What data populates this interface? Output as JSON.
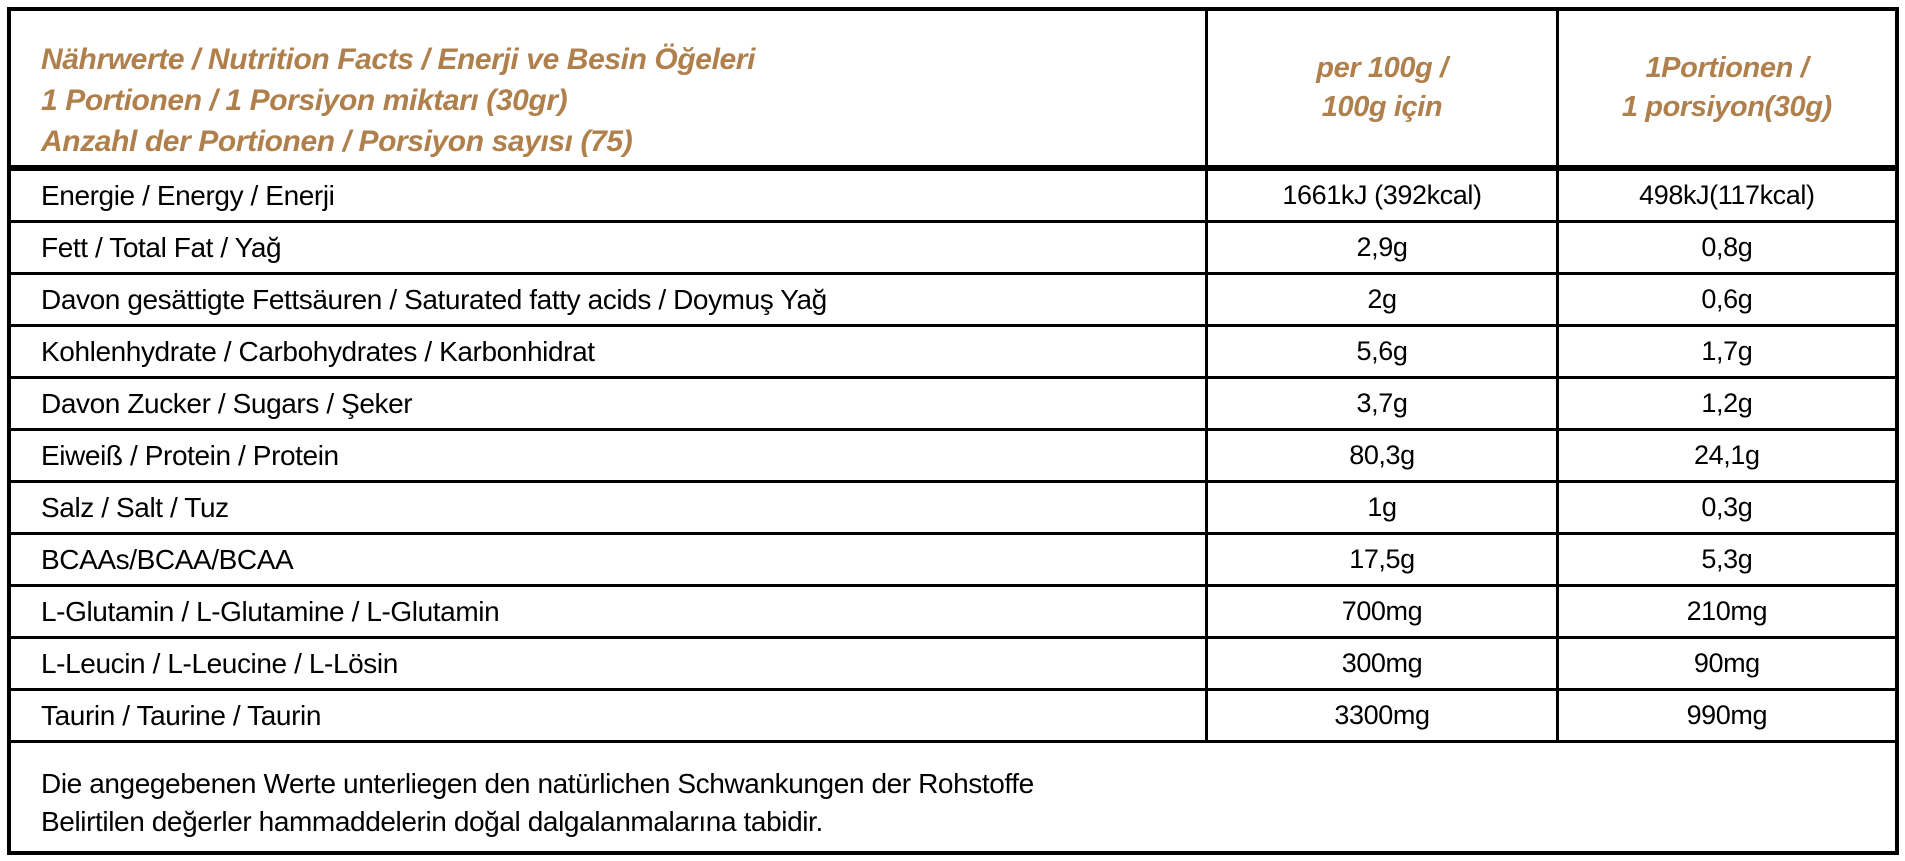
{
  "accent_color": "#b0804c",
  "table": {
    "header": {
      "title_lines": [
        "Nährwerte / Nutrition Facts / Enerji ve Besin Öğeleri",
        "1 Portionen / 1 Porsiyon miktarı (30gr)",
        "Anzahl der Portionen / Porsiyon sayısı (75)"
      ],
      "col_per_100g_lines": [
        "per 100g /",
        "100g için"
      ],
      "col_portion_lines": [
        "1Portionen /",
        "1 porsiyon(30g)"
      ]
    },
    "rows": [
      {
        "label": "Energie / Energy / Enerji",
        "per100g": "1661kJ (392kcal)",
        "portion": "498kJ(117kcal)"
      },
      {
        "label": "Fett / Total Fat / Yağ",
        "per100g": "2,9g",
        "portion": "0,8g"
      },
      {
        "label": "Davon gesättigte Fettsäuren / Saturated fatty acids / Doymuş Yağ",
        "per100g": "2g",
        "portion": "0,6g"
      },
      {
        "label": "Kohlenhydrate / Carbohydrates / Karbonhidrat",
        "per100g": "5,6g",
        "portion": "1,7g"
      },
      {
        "label": "Davon Zucker / Sugars / Şeker",
        "per100g": "3,7g",
        "portion": "1,2g"
      },
      {
        "label": "Eiweiß / Protein / Protein",
        "per100g": "80,3g",
        "portion": "24,1g"
      },
      {
        "label": "Salz / Salt / Tuz",
        "per100g": "1g",
        "portion": "0,3g"
      },
      {
        "label": "BCAAs/BCAA/BCAA",
        "per100g": "17,5g",
        "portion": "5,3g"
      },
      {
        "label": "L-Glutamin / L-Glutamine / L-Glutamin",
        "per100g": "700mg",
        "portion": "210mg"
      },
      {
        "label": "L-Leucin / L-Leucine / L-Lösin",
        "per100g": "300mg",
        "portion": "90mg"
      },
      {
        "label": "Taurin / Taurine / Taurin",
        "per100g": "3300mg",
        "portion": "990mg"
      }
    ],
    "footer_lines": [
      "Die angegebenen Werte unterliegen den natürlichen Schwankungen der Rohstoffe",
      "Belirtilen değerler hammaddelerin doğal dalgalanmalarına tabidir."
    ]
  }
}
